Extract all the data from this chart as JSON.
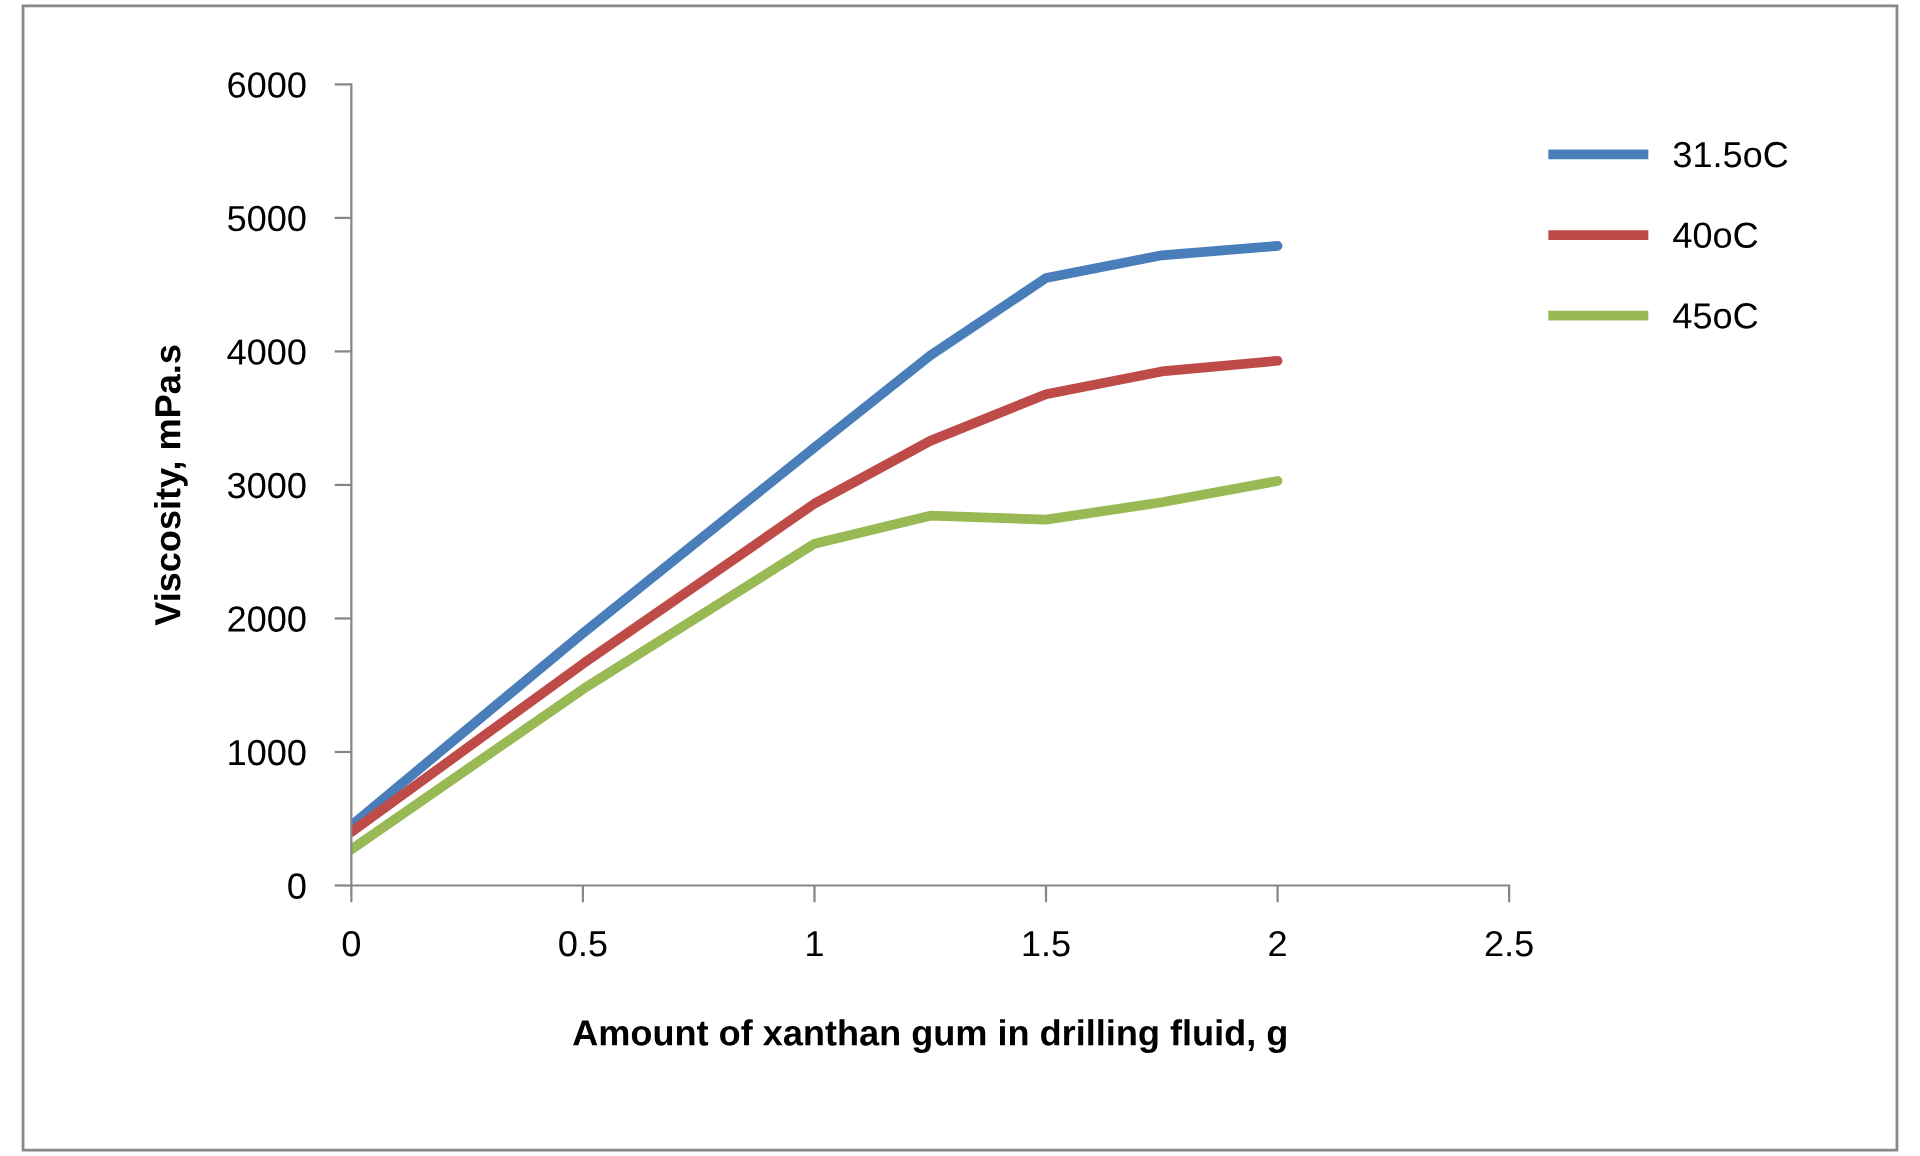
{
  "chart_data": {
    "type": "line",
    "xlabel": "Amount of xanthan gum in drilling fluid, g",
    "ylabel": "Viscosity, mPa.s",
    "x": [
      0,
      0.5,
      1,
      1.25,
      1.5,
      1.75,
      2
    ],
    "series": [
      {
        "name": "31.5oC",
        "color": "#4a7ebb",
        "values": [
          450,
          1890,
          3280,
          3970,
          4550,
          4720,
          4790
        ]
      },
      {
        "name": "40oC",
        "color": "#be4b48",
        "values": [
          400,
          1660,
          2860,
          3330,
          3680,
          3850,
          3930
        ]
      },
      {
        "name": "45oC",
        "color": "#98b954",
        "values": [
          270,
          1470,
          2560,
          2770,
          2740,
          2870,
          3030
        ]
      }
    ],
    "xlim": [
      0,
      2.5
    ],
    "xticks": [
      0,
      0.5,
      1,
      1.5,
      2,
      2.5
    ],
    "ylim": [
      0,
      6000
    ],
    "yticks": [
      0,
      1000,
      2000,
      3000,
      4000,
      5000,
      6000
    ],
    "grid": false,
    "legend": "right",
    "marker": "none",
    "line_style": "solid"
  }
}
